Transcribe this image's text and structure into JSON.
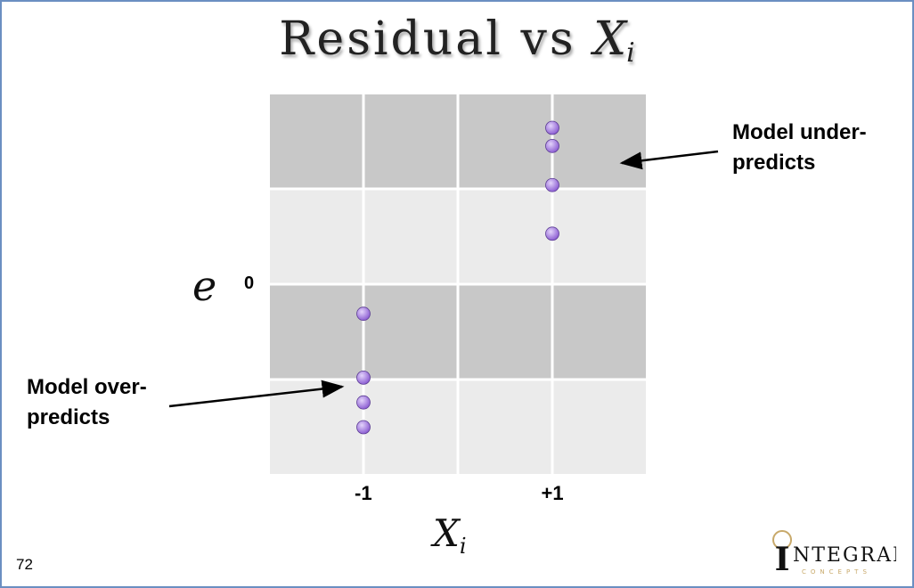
{
  "title": {
    "text": "Residual vs ",
    "var": "X",
    "sub": "i"
  },
  "slide_number": "72",
  "logo": {
    "initial": "I",
    "word": "NTEGRAL",
    "tagline": "CONCEPTS",
    "accent": "#c8a96a"
  },
  "annotations": {
    "under": [
      "Model under-",
      "predicts"
    ],
    "over": [
      "Model over-",
      "predicts"
    ]
  },
  "colors": {
    "band_dark": "#c8c8c8",
    "band_light": "#ebebeb",
    "grid": "#ffffff",
    "point": "#8d5fd3",
    "point_highlight": "#e3d3fb",
    "frame": "#6b8fc2"
  },
  "chart_data": {
    "type": "scatter",
    "title": "Residual vs Xi",
    "xlabel": "Xi",
    "ylabel": "e",
    "xlim": [
      -2,
      2
    ],
    "ylim": [
      -2,
      2
    ],
    "grid": true,
    "x_ticks": [
      {
        "value": -1,
        "label": "-1"
      },
      {
        "value": 1,
        "label": "+1"
      }
    ],
    "y_ticks": [
      {
        "value": 0,
        "label": "0"
      }
    ],
    "points": [
      {
        "x": 1,
        "y": 1.64
      },
      {
        "x": 1,
        "y": 1.45
      },
      {
        "x": 1,
        "y": 1.04
      },
      {
        "x": 1,
        "y": 0.53
      },
      {
        "x": -1,
        "y": -0.31
      },
      {
        "x": -1,
        "y": -0.98
      },
      {
        "x": -1,
        "y": -1.24
      },
      {
        "x": -1,
        "y": -1.5
      }
    ]
  }
}
